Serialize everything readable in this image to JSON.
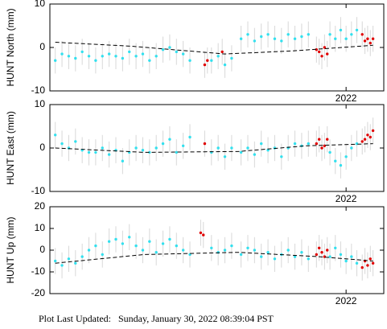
{
  "chart_data": [
    {
      "type": "scatter",
      "ylabel": "HUNT North (mm)",
      "xlim": [
        2019.8,
        2022.28
      ],
      "ylim": [
        -10,
        10
      ],
      "yticks": [
        -10,
        0,
        10
      ],
      "xticks": [
        {
          "value": 2022,
          "label": "2022"
        }
      ],
      "error": 3,
      "series": [
        {
          "color": "#33e0ee",
          "x": [
            2019.84,
            2019.89,
            2019.94,
            2019.99,
            2020.04,
            2020.09,
            2020.14,
            2020.19,
            2020.24,
            2020.29,
            2020.34,
            2020.39,
            2020.44,
            2020.49,
            2020.54,
            2020.59,
            2020.64,
            2020.69,
            2020.74,
            2020.79,
            2020.84,
            2021.0,
            2021.05,
            2021.1,
            2021.15,
            2021.22,
            2021.27,
            2021.32,
            2021.37,
            2021.42,
            2021.47,
            2021.52,
            2021.57,
            2021.62,
            2021.67,
            2021.72,
            2021.88,
            2021.92,
            2021.96,
            2022.0,
            2022.04,
            2022.08
          ],
          "values": [
            -3,
            -1.5,
            -2,
            -2.5,
            -1,
            -2,
            -3,
            -2,
            -1.5,
            -2,
            -2.5,
            -1,
            -2,
            -1.5,
            -3,
            -2,
            -0.5,
            0,
            -1,
            -1.5,
            -3,
            -3,
            -2,
            -4,
            -2.5,
            2,
            3,
            1.5,
            2.5,
            3,
            2,
            1.5,
            3,
            2,
            2.5,
            3,
            3,
            2,
            4,
            2,
            3,
            4
          ]
        },
        {
          "color": "#e00000",
          "x": [
            2020.95,
            2020.97,
            2021.08,
            2021.78,
            2021.8,
            2021.82,
            2021.84,
            2021.86,
            2022.12,
            2022.14,
            2022.16,
            2022.18,
            2022.2
          ],
          "values": [
            -4,
            -3,
            -1,
            -0.5,
            -1,
            -2,
            0,
            -1.5,
            3,
            1.5,
            2,
            1,
            2
          ]
        }
      ],
      "trend": {
        "color": "#000000",
        "x": [
          2019.84,
          2020.4,
          2021.1,
          2021.6,
          2022.2
        ],
        "values": [
          1.2,
          0.3,
          -1.5,
          -0.8,
          0.5
        ]
      }
    },
    {
      "type": "scatter",
      "ylabel": "HUNT East (mm)",
      "xlim": [
        2019.8,
        2022.28
      ],
      "ylim": [
        -10,
        10
      ],
      "yticks": [
        -10,
        0,
        10
      ],
      "xticks": [
        {
          "value": 2022,
          "label": "2022"
        }
      ],
      "error": 3,
      "series": [
        {
          "color": "#33e0ee",
          "x": [
            2019.84,
            2019.89,
            2019.94,
            2019.99,
            2020.04,
            2020.09,
            2020.14,
            2020.19,
            2020.24,
            2020.29,
            2020.34,
            2020.39,
            2020.44,
            2020.49,
            2020.54,
            2020.59,
            2020.64,
            2020.69,
            2020.74,
            2020.79,
            2020.84,
            2021.0,
            2021.05,
            2021.1,
            2021.15,
            2021.22,
            2021.27,
            2021.32,
            2021.37,
            2021.42,
            2021.47,
            2021.52,
            2021.57,
            2021.62,
            2021.67,
            2021.72,
            2021.88,
            2021.92,
            2021.96,
            2022.0,
            2022.04,
            2022.08
          ],
          "values": [
            3,
            1,
            0,
            1.5,
            -0.5,
            -1,
            -1,
            0,
            -1.5,
            -0.5,
            -3,
            -1,
            0,
            -0.5,
            -1,
            0,
            1,
            2,
            -1,
            0.5,
            2.5,
            -1,
            0,
            -2,
            0,
            -1,
            0,
            -1.5,
            1,
            -0.5,
            0,
            -2,
            0,
            1,
            0.5,
            1,
            -1,
            -3,
            -4,
            -2,
            0,
            1
          ]
        },
        {
          "color": "#e00000",
          "x": [
            2020.95,
            2021.78,
            2021.8,
            2021.82,
            2021.84,
            2021.86,
            2022.12,
            2022.14,
            2022.16,
            2022.18,
            2022.2
          ],
          "values": [
            1,
            1,
            2,
            0,
            0.5,
            2,
            1.5,
            2,
            3,
            2.5,
            4
          ]
        }
      ],
      "trend": {
        "color": "#000000",
        "x": [
          2019.84,
          2020.5,
          2021.2,
          2021.7,
          2022.2
        ],
        "values": [
          0,
          -1,
          -0.8,
          0.5,
          1
        ]
      }
    },
    {
      "type": "scatter",
      "ylabel": "HUNT Up (mm)",
      "xlim": [
        2019.8,
        2022.28
      ],
      "ylim": [
        -20,
        20
      ],
      "yticks": [
        -20,
        -10,
        0,
        10,
        20
      ],
      "xticks": [
        {
          "value": 2022,
          "label": "2022"
        }
      ],
      "error": 6,
      "series": [
        {
          "color": "#33e0ee",
          "x": [
            2019.84,
            2019.89,
            2019.94,
            2019.99,
            2020.04,
            2020.09,
            2020.14,
            2020.19,
            2020.24,
            2020.29,
            2020.34,
            2020.39,
            2020.44,
            2020.49,
            2020.54,
            2020.59,
            2020.64,
            2020.69,
            2020.74,
            2020.79,
            2020.84,
            2021.0,
            2021.05,
            2021.1,
            2021.15,
            2021.22,
            2021.27,
            2021.32,
            2021.37,
            2021.42,
            2021.47,
            2021.52,
            2021.57,
            2021.62,
            2021.67,
            2021.72,
            2021.88,
            2021.92,
            2021.96,
            2022.0,
            2022.04,
            2022.08
          ],
          "values": [
            -5,
            -7,
            -4,
            -6,
            -3,
            0,
            2,
            -2,
            4,
            5,
            3,
            6,
            2,
            0,
            4,
            -1,
            3,
            5,
            2,
            0,
            -2,
            1,
            -1,
            0,
            2,
            -2,
            1,
            0,
            -3,
            -1,
            -4,
            -2,
            0,
            -3,
            -1,
            -4,
            -3,
            1,
            -2,
            -5,
            -3,
            -6
          ]
        },
        {
          "color": "#e00000",
          "x": [
            2020.92,
            2020.94,
            2021.78,
            2021.8,
            2021.82,
            2021.84,
            2021.86,
            2022.12,
            2022.14,
            2022.16,
            2022.18,
            2022.2
          ],
          "values": [
            8,
            7,
            -2,
            1,
            -1,
            -3,
            0,
            -8,
            -5,
            -7,
            -4,
            -6
          ]
        }
      ],
      "trend": {
        "color": "#000000",
        "x": [
          2019.84,
          2020.5,
          2021.2,
          2021.8,
          2022.2
        ],
        "values": [
          -6,
          -2,
          -1,
          -3,
          -5
        ]
      }
    }
  ],
  "footer": {
    "label": "Plot Last Updated:",
    "value": "Sunday, January 30, 2022 08:39:04 PST"
  }
}
